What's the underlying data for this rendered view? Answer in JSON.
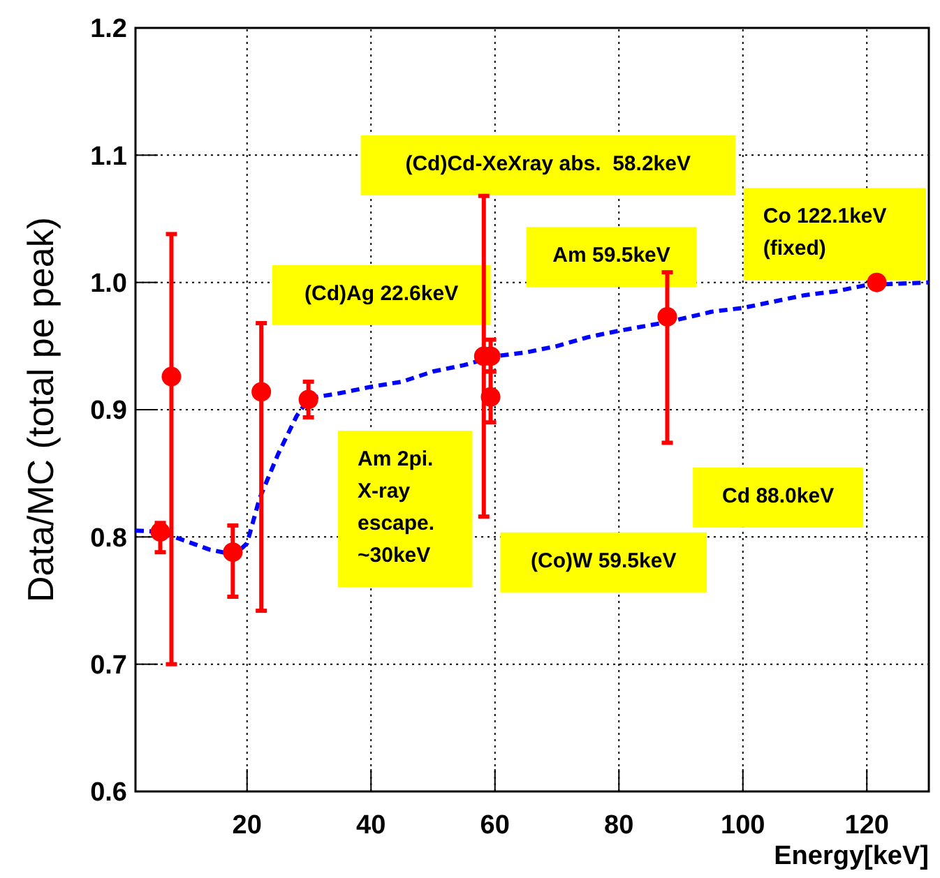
{
  "chart_data": {
    "type": "scatter",
    "xlabel": "Energy[keV]",
    "ylabel": "Data/MC (total pe peak)",
    "xlim": [
      2,
      130
    ],
    "ylim": [
      0.6,
      1.2
    ],
    "xticks": [
      20,
      40,
      60,
      80,
      100,
      120
    ],
    "yticks": [
      0.6,
      0.7,
      0.8,
      0.9,
      {
        "value": 1,
        "label": "1.0"
      },
      1.1,
      1.2
    ],
    "grid": true,
    "series": [
      {
        "type": "line",
        "color": "#0000ff",
        "line_style": "dashed",
        "x": [
          2,
          6,
          10,
          14,
          18,
          20,
          22,
          25,
          28,
          30,
          35,
          40,
          45,
          50,
          55,
          60,
          65,
          70,
          75,
          80,
          88,
          95,
          100,
          105,
          110,
          115,
          120,
          125,
          130
        ],
        "values": [
          0.805,
          0.804,
          0.797,
          0.79,
          0.786,
          0.795,
          0.83,
          0.865,
          0.895,
          0.909,
          0.913,
          0.918,
          0.922,
          0.93,
          0.935,
          0.942,
          0.945,
          0.95,
          0.957,
          0.962,
          0.969,
          0.977,
          0.98,
          0.985,
          0.99,
          0.993,
          0.998,
          0.999,
          1.0
        ]
      },
      {
        "color": "#ff0000",
        "marker": "circle",
        "x": [
          6,
          7.8,
          17.7,
          22.3,
          29.9,
          58.2,
          59.3,
          59.3,
          87.8,
          121.6
        ],
        "values": [
          0.804,
          0.926,
          0.788,
          0.914,
          0.908,
          0.942,
          0.942,
          0.91,
          0.973,
          1.0
        ],
        "errors": [
          [
            0.788,
            0.811
          ],
          [
            0.7,
            1.038
          ],
          [
            0.753,
            0.809
          ],
          [
            0.742,
            0.968
          ],
          [
            0.894,
            0.922
          ],
          [
            0.816,
            1.068
          ],
          [
            0.93,
            0.955
          ],
          [
            0.89,
            0.93
          ],
          [
            0.874,
            1.008
          ],
          null
        ]
      }
    ],
    "annotations": [
      "(Cd)Cd-XeXray abs.  58.2keV",
      "Am 59.5keV",
      "Co 122.1keV\n(fixed)",
      "(Cd)Ag 22.6keV",
      "Am 2pi.\nX-ray\nescape.\n~30keV",
      "Cd 88.0keV",
      "(Co)W 59.5keV"
    ]
  }
}
